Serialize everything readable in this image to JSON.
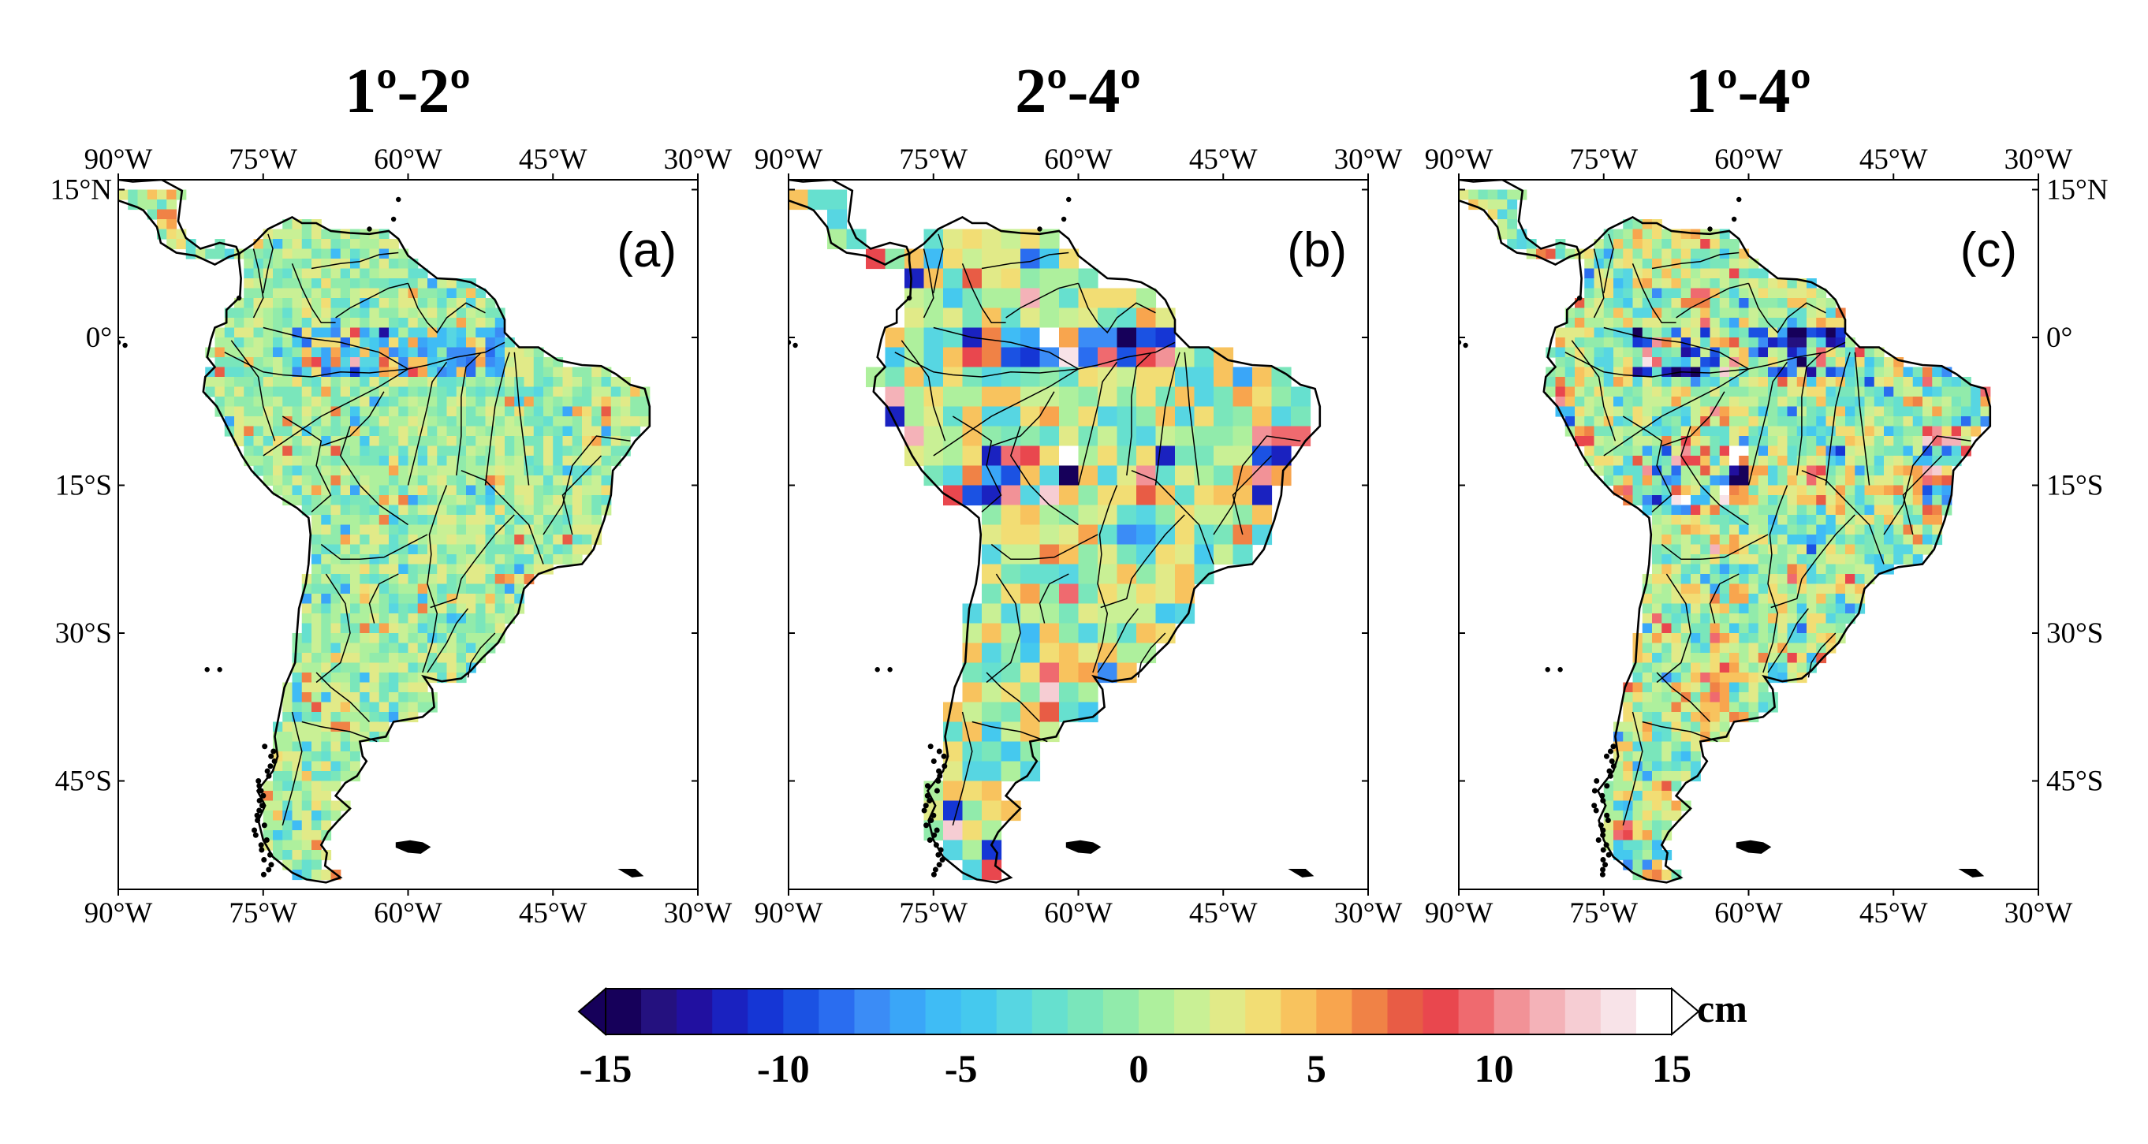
{
  "figure": {
    "panels": [
      {
        "id": "a",
        "title": "1º-2º",
        "letter": "(a)"
      },
      {
        "id": "b",
        "title": "2º-4º",
        "letter": "(b)"
      },
      {
        "id": "c",
        "title": "1º-4º",
        "letter": "(c)"
      }
    ],
    "lon_ticks": [
      "90°W",
      "75°W",
      "60°W",
      "45°W",
      "30°W"
    ],
    "lat_ticks": [
      "15°N",
      "0°",
      "15°S",
      "30°S",
      "45°S"
    ],
    "lon_range": [
      -90,
      -30
    ],
    "lat_range": [
      -56,
      16
    ],
    "colorbar": {
      "unit": "cm",
      "min": -15,
      "max": 15,
      "tick_labels": [
        "-15",
        "-10",
        "-5",
        "0",
        "5",
        "10",
        "15"
      ],
      "colors": [
        "#16005a",
        "#24117f",
        "#2110a0",
        "#1a22c0",
        "#1536d5",
        "#1b52e3",
        "#2a6df0",
        "#3b8cf6",
        "#3aa6f8",
        "#3fbcf5",
        "#45c9ee",
        "#57d6e2",
        "#66e0cf",
        "#7ae6bb",
        "#91ebab",
        "#aef09d",
        "#c9f095",
        "#e1ea88",
        "#f2dd74",
        "#f8c35e",
        "#f8a54e",
        "#f08246",
        "#e85c45",
        "#e9474e",
        "#ef6a6f",
        "#f29297",
        "#f4b2b8",
        "#f6cdd3",
        "#f8e3e8",
        "#ffffff"
      ]
    }
  }
}
